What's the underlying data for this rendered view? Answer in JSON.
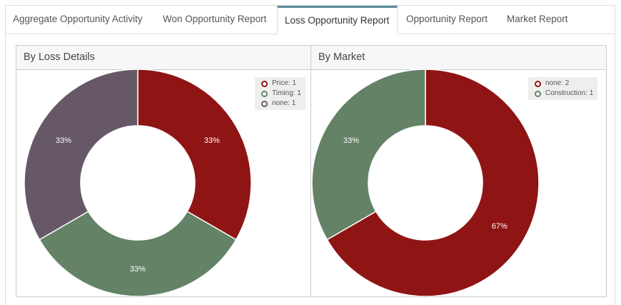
{
  "tabs": [
    {
      "label": "Aggregate Opportunity Activity"
    },
    {
      "label": "Won Opportunity Report"
    },
    {
      "label": "Loss Opportunity Report",
      "active": true
    },
    {
      "label": "Opportunity Report"
    },
    {
      "label": "Market Report"
    }
  ],
  "colors": {
    "red": "#8f1414",
    "green": "#638266",
    "purple": "#675868",
    "tab_accent": "#5b8b9a"
  },
  "charts": [
    {
      "title": "By Loss Details",
      "slices": [
        {
          "name": "Price",
          "value": 1,
          "color": "#8f1414",
          "label": "33%",
          "legend": "Price: 1"
        },
        {
          "name": "Timing",
          "value": 1,
          "color": "#638266",
          "label": "33%",
          "legend": "Timing: 1"
        },
        {
          "name": "none",
          "value": 1,
          "color": "#675868",
          "label": "33%",
          "legend": "none: 1"
        }
      ]
    },
    {
      "title": "By Market",
      "slices": [
        {
          "name": "none",
          "value": 2,
          "color": "#8f1414",
          "label": "67%",
          "legend": "none: 2"
        },
        {
          "name": "Construction",
          "value": 1,
          "color": "#638266",
          "label": "33%",
          "legend": "Construction: 1"
        }
      ]
    }
  ]
}
